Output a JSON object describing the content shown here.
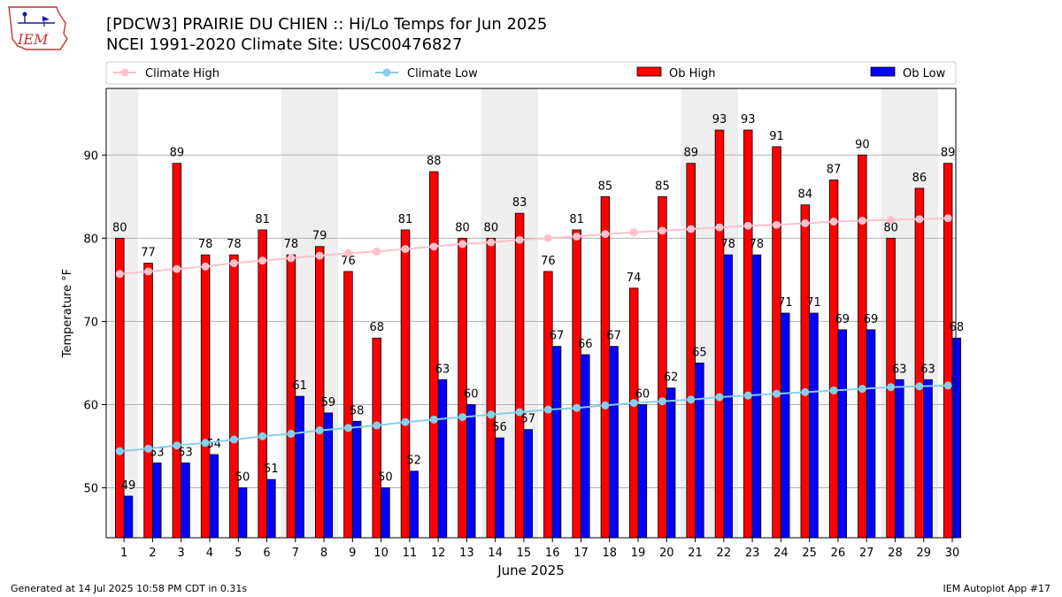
{
  "header": {
    "title_line1": "[PDCW3] PRAIRIE DU CHIEN :: Hi/Lo Temps for Jun 2025",
    "title_line2": "NCEI 1991-2020 Climate Site: USC00476827",
    "logo_text": "IEM"
  },
  "footer": {
    "generated": "Generated at 14 Jul 2025 10:58 PM CDT in 0.31s",
    "app": "IEM Autoplot App #17"
  },
  "chart_data": {
    "type": "bar",
    "xlabel": "June 2025",
    "ylabel": "Temperature °F",
    "ylim": [
      44,
      98
    ],
    "yticks": [
      50,
      60,
      70,
      80,
      90
    ],
    "grid": "horizontal",
    "legend_position": "top",
    "shaded_weekends": [
      [
        1,
        1
      ],
      [
        7,
        8
      ],
      [
        14,
        15
      ],
      [
        21,
        22
      ],
      [
        28,
        29
      ]
    ],
    "categories": [
      "1",
      "2",
      "3",
      "4",
      "5",
      "6",
      "7",
      "8",
      "9",
      "10",
      "11",
      "12",
      "13",
      "14",
      "15",
      "16",
      "17",
      "18",
      "19",
      "20",
      "21",
      "22",
      "23",
      "24",
      "25",
      "26",
      "27",
      "28",
      "29",
      "30"
    ],
    "series": [
      {
        "name": "Climate High",
        "kind": "line",
        "color": "#ffc0cb",
        "values": [
          75.7,
          76.0,
          76.3,
          76.6,
          77.0,
          77.3,
          77.6,
          77.9,
          78.2,
          78.4,
          78.7,
          79.0,
          79.3,
          79.5,
          79.8,
          80.0,
          80.2,
          80.5,
          80.7,
          80.9,
          81.1,
          81.3,
          81.5,
          81.6,
          81.8,
          82.0,
          82.1,
          82.2,
          82.3,
          82.4
        ]
      },
      {
        "name": "Climate Low",
        "kind": "line",
        "color": "#87ceeb",
        "values": [
          54.4,
          54.7,
          55.1,
          55.4,
          55.8,
          56.2,
          56.5,
          56.9,
          57.2,
          57.5,
          57.9,
          58.2,
          58.5,
          58.8,
          59.1,
          59.4,
          59.6,
          59.9,
          60.2,
          60.4,
          60.6,
          60.9,
          61.1,
          61.3,
          61.5,
          61.7,
          61.9,
          62.1,
          62.2,
          62.3
        ]
      },
      {
        "name": "Ob High",
        "kind": "bar",
        "color": "#ff0000",
        "values": [
          80,
          77,
          89,
          78,
          78,
          81,
          78,
          79,
          76,
          68,
          81,
          88,
          80,
          80,
          83,
          76,
          81,
          85,
          74,
          85,
          89,
          93,
          93,
          91,
          84,
          87,
          90,
          80,
          86,
          89
        ]
      },
      {
        "name": "Ob Low",
        "kind": "bar",
        "color": "#0000ff",
        "values": [
          49,
          53,
          53,
          54,
          50,
          51,
          61,
          59,
          58,
          50,
          52,
          63,
          60,
          56,
          57,
          67,
          66,
          67,
          60,
          62,
          65,
          78,
          78,
          71,
          71,
          69,
          69,
          63,
          63,
          68
        ]
      }
    ]
  }
}
